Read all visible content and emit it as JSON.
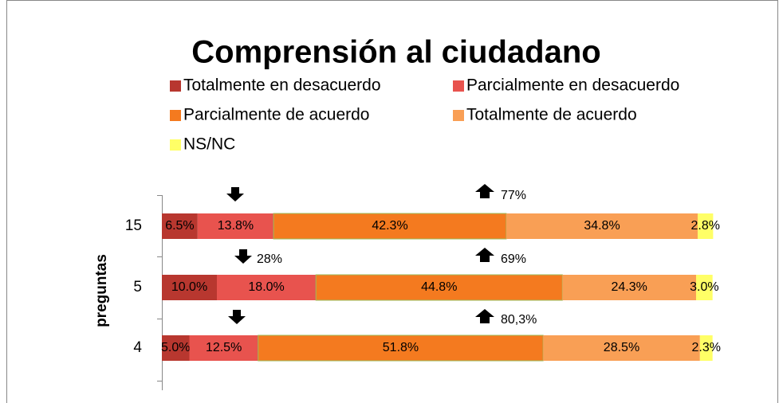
{
  "chart_data": {
    "type": "stacked-barh",
    "title": "Comprensión al ciudadano",
    "ylabel": "preguntas",
    "categories": [
      "15",
      "5",
      "4"
    ],
    "xlim": [
      0,
      100
    ],
    "legend": "top",
    "series": [
      {
        "name": "Totalmente en desacuerdo",
        "color": "#b8372f",
        "values": [
          6.5,
          10,
          5
        ],
        "value_labels": [
          "6.5%",
          "10.0%",
          "5.0%"
        ]
      },
      {
        "name": "Parcialmente en desacuerdo",
        "color": "#e8534e",
        "values": [
          13.8,
          18,
          12.5
        ],
        "value_labels": [
          "13.8%",
          "18.0%",
          "12.5%"
        ]
      },
      {
        "name": "Parcialmente de acuerdo",
        "color": "#f47a1f",
        "values": [
          42.3,
          44.8,
          51.8
        ],
        "value_labels": [
          "42.3%",
          "44.8%",
          "51.8%"
        ]
      },
      {
        "name": "Totalmente de acuerdo",
        "color": "#f99f55",
        "values": [
          34.8,
          24.3,
          28.5
        ],
        "value_labels": [
          "34.8%",
          "24.3%",
          "28.5%"
        ]
      },
      {
        "name": "NS/NC",
        "color": "#ffff66",
        "values": [
          2.8,
          3,
          2.3
        ],
        "value_labels": [
          "2.8%",
          "3.0%",
          "2.3%"
        ]
      }
    ],
    "annotations": [
      "77%",
      "28%",
      "69%",
      "80,3%"
    ]
  }
}
